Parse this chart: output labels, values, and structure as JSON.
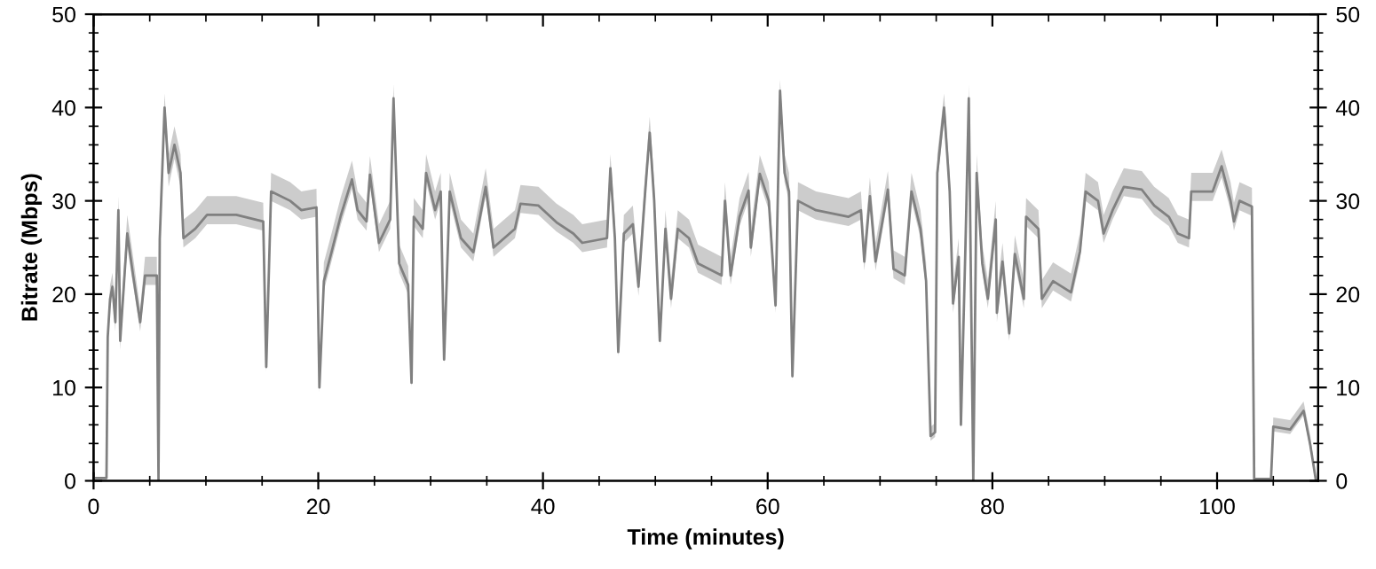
{
  "chart_data": {
    "type": "line",
    "xlabel": "Time (minutes)",
    "ylabel": "Bitrate (Mbps)",
    "x": [
      0.0,
      1.15,
      1.26,
      1.47,
      1.68,
      1.94,
      2.21,
      2.37,
      3.0,
      3.52,
      4.15,
      4.58,
      5.63,
      5.78,
      5.89,
      6.32,
      6.68,
      7.2,
      7.74,
      8.0,
      9.05,
      10.1,
      12.7,
      15.1,
      15.37,
      15.8,
      17.5,
      18.5,
      19.84,
      20.1,
      20.5,
      21.2,
      22.0,
      23.0,
      23.5,
      24.3,
      24.6,
      25.4,
      26.4,
      26.7,
      27.2,
      28.0,
      28.3,
      28.5,
      29.3,
      29.6,
      30.4,
      30.9,
      31.2,
      31.7,
      32.7,
      33.8,
      34.9,
      35.6,
      37.5,
      38.0,
      39.6,
      41.2,
      42.7,
      43.5,
      45.7,
      46.0,
      46.4,
      46.7,
      47.2,
      48.0,
      48.5,
      49.1,
      49.5,
      49.9,
      50.4,
      50.9,
      51.4,
      52.0,
      53.0,
      53.8,
      55.9,
      56.2,
      56.7,
      57.5,
      58.3,
      58.5,
      59.3,
      60.1,
      60.7,
      61.1,
      61.5,
      61.9,
      62.2,
      62.7,
      64.3,
      67.2,
      68.3,
      68.6,
      69.1,
      69.6,
      70.7,
      71.2,
      72.2,
      72.8,
      73.6,
      74.1,
      74.5,
      74.9,
      75.1,
      75.7,
      76.2,
      76.5,
      77.0,
      77.2,
      77.6,
      77.9,
      78.3,
      78.6,
      79.1,
      79.6,
      80.3,
      80.4,
      80.9,
      81.5,
      82.0,
      82.8,
      83.0,
      84.1,
      84.4,
      85.4,
      87.0,
      87.8,
      88.3,
      89.4,
      89.9,
      90.7,
      91.7,
      93.3,
      94.4,
      95.7,
      96.5,
      97.5,
      97.7,
      99.6,
      100.4,
      101.2,
      101.5,
      102.0,
      103.1,
      103.3,
      104.8,
      105.0,
      106.5,
      107.7,
      108.3,
      108.8
    ],
    "series": [
      {
        "color": "#808080",
        "values": [
          0.3,
          0.3,
          15.4,
          19.5,
          20.8,
          17,
          29,
          15,
          26.5,
          22,
          17,
          22,
          22,
          0,
          25.9,
          40,
          33,
          36,
          33,
          26,
          27,
          28.5,
          28.5,
          27.8,
          12.2,
          31,
          30,
          29,
          29.3,
          10,
          21.4,
          24.6,
          28.4,
          32.3,
          29,
          27.8,
          32.8,
          25.5,
          28,
          41,
          23.3,
          21,
          10.5,
          28.3,
          27,
          33,
          29,
          31,
          13,
          31,
          26,
          24.5,
          31.5,
          25,
          27,
          29.7,
          29.5,
          27.7,
          26.5,
          25.5,
          26,
          33.5,
          26,
          13.8,
          26.5,
          27.5,
          20.8,
          31,
          37.3,
          30,
          15,
          27,
          19.5,
          27,
          26,
          23.3,
          22,
          30,
          22,
          28.3,
          31.1,
          25,
          32.9,
          30,
          18.8,
          41.8,
          33,
          31,
          11.2,
          30,
          29,
          28.3,
          29,
          23.5,
          30.5,
          23.5,
          31.2,
          22.7,
          22,
          31,
          27,
          21.4,
          4.8,
          5.2,
          33,
          40,
          31,
          19,
          24,
          6,
          25,
          41,
          0,
          33,
          23.3,
          19.5,
          28,
          18,
          23.5,
          15.8,
          24.3,
          19.5,
          28.3,
          27,
          19.5,
          21.4,
          20.2,
          24.6,
          31,
          30,
          26.5,
          29,
          31.5,
          31.2,
          29.5,
          28.3,
          26.5,
          26,
          31,
          31,
          33.7,
          30,
          27.8,
          30,
          29.4,
          0.2,
          0.2,
          5.8,
          5.5,
          7.5,
          3.8,
          0
        ],
        "lower": [
          0.3,
          0.3,
          14.9,
          18.5,
          19.8,
          16,
          27.5,
          14,
          25,
          21,
          16,
          21,
          21,
          0,
          25,
          38.5,
          31.5,
          34.5,
          31.5,
          25,
          26,
          27.5,
          27.5,
          26.8,
          11.7,
          30,
          29,
          28,
          28.3,
          9.5,
          20.4,
          23.6,
          27.4,
          31.3,
          28,
          26.8,
          31.8,
          24.5,
          27,
          39.5,
          22.3,
          20,
          10,
          27.3,
          26,
          32,
          28,
          30,
          12.5,
          30,
          25,
          23.5,
          30.5,
          24,
          26,
          28.7,
          28.5,
          26.7,
          25.5,
          24.5,
          25,
          32.5,
          25,
          13.3,
          25.5,
          26.5,
          19.8,
          30,
          36,
          29,
          14.5,
          26,
          18.5,
          26,
          25,
          22.3,
          21,
          29,
          21,
          27.3,
          30.1,
          24,
          31.9,
          29,
          18,
          40.5,
          32,
          30,
          10.7,
          29,
          28,
          27.3,
          28,
          22.5,
          29.5,
          22.5,
          30.2,
          21.7,
          21,
          30,
          26,
          20.4,
          4.3,
          4.7,
          32,
          38.5,
          30,
          18,
          23,
          5.5,
          24,
          39.5,
          0,
          32,
          22.3,
          18.5,
          27,
          17,
          22.5,
          15,
          23.3,
          18.5,
          27.3,
          26,
          18.5,
          20.4,
          19.2,
          23.6,
          30,
          29,
          25.5,
          28,
          30.5,
          30.2,
          28.5,
          27.3,
          25.5,
          25,
          30,
          30,
          32.5,
          29,
          26.8,
          29,
          28.4,
          0.2,
          0.2,
          5.3,
          5,
          7,
          3.3,
          0
        ],
        "upper": [
          0.3,
          0.3,
          16.4,
          21,
          22.3,
          18.5,
          30.5,
          16.5,
          28.5,
          24,
          18.5,
          24,
          24,
          0,
          27.5,
          41.5,
          35,
          38,
          35,
          28,
          29,
          30.5,
          30.5,
          29.8,
          13.2,
          33,
          32,
          31,
          31.3,
          11,
          23.4,
          26.6,
          30.4,
          34.3,
          31,
          29.8,
          34.8,
          27.5,
          30,
          42.5,
          25.3,
          23,
          11.5,
          30.3,
          29,
          35,
          31,
          33,
          14,
          33,
          28,
          26.5,
          33.5,
          27,
          29,
          31.7,
          31.5,
          29.7,
          28.5,
          27.5,
          28,
          35,
          28,
          14.8,
          28.5,
          29.5,
          22.8,
          33,
          39,
          32,
          16,
          29,
          21.5,
          29,
          28,
          25.3,
          24,
          32,
          24,
          30.3,
          33.1,
          27,
          34.9,
          32,
          20.3,
          43,
          35,
          33,
          12.2,
          32,
          31,
          30.3,
          31,
          25.5,
          32.5,
          25.5,
          33.2,
          24.7,
          24,
          33,
          29,
          23.4,
          5.8,
          6.2,
          35,
          41.5,
          33,
          21,
          26,
          7,
          27,
          42.5,
          0,
          35,
          25.3,
          21.5,
          30,
          20,
          25.5,
          17.3,
          26.3,
          21.5,
          30.3,
          29,
          21.5,
          23.4,
          22.2,
          26.6,
          33,
          32,
          28.5,
          31,
          33.5,
          33.2,
          31.5,
          30.3,
          28.5,
          28,
          33,
          33,
          35.5,
          32,
          29.8,
          32,
          31.4,
          0.2,
          0.2,
          6.8,
          6.5,
          8.5,
          4.8,
          0
        ]
      }
    ],
    "xlim": [
      0,
      109
    ],
    "xticks": [
      0,
      20,
      40,
      60,
      80,
      100
    ],
    "ylim": [
      0,
      50
    ],
    "yticks": [
      0,
      10,
      20,
      30,
      40,
      50
    ],
    "y2lim": [
      0,
      50
    ],
    "y2ticks": [
      0,
      10,
      20,
      30,
      40,
      50
    ],
    "grid": false,
    "legend": false,
    "marker": "none",
    "line_style": "solid"
  }
}
